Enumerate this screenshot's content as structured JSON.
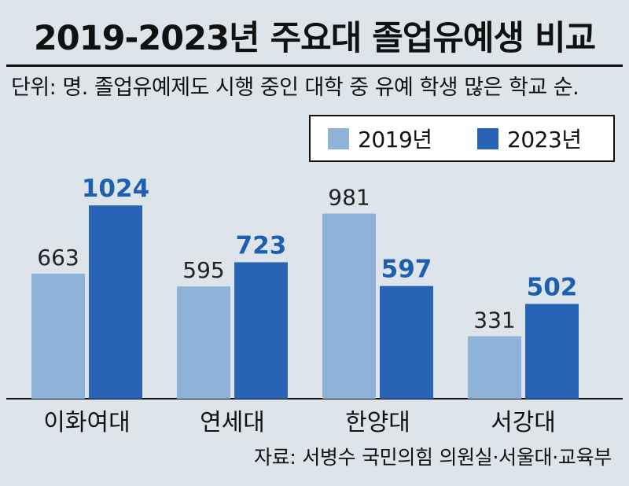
{
  "chart_data": {
    "type": "bar",
    "title": "2019-2023년 주요대 졸업유예생 비교",
    "subtitle": "단위: 명. 졸업유예제도 시행 중인 대학 중 유예 학생 많은 학교 순.",
    "categories": [
      "이화여대",
      "연세대",
      "한양대",
      "서강대"
    ],
    "series": [
      {
        "name": "2019년",
        "color": "#8fb3d8",
        "label_color": "#222222",
        "values": [
          663,
          595,
          981,
          331
        ]
      },
      {
        "name": "2023년",
        "color": "#2863b6",
        "label_color": "#1d5fb0",
        "values": [
          1024,
          723,
          597,
          502
        ]
      }
    ],
    "ylim": [
      0,
      1100
    ],
    "xlabel": "",
    "ylabel": "",
    "source": "자료: 서병수 국민의힘 의원실·서울대·교육부"
  }
}
